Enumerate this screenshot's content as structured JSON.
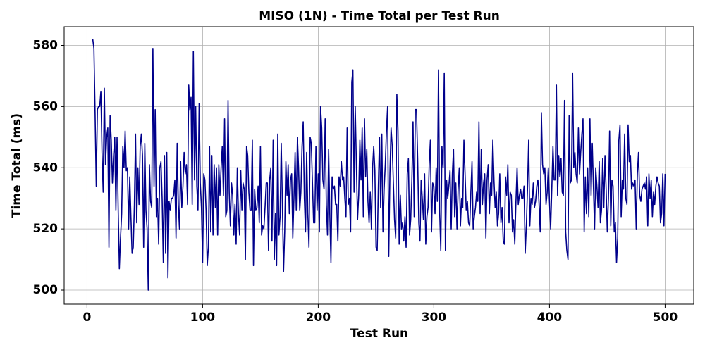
{
  "chart_data": {
    "type": "line",
    "title": "MISO (1N) - Time Total per Test Run",
    "x_label": "Test Run",
    "y_label": "Time Total (ms)",
    "color": "#00008b",
    "grid": true,
    "xlim": [
      -19.75,
      524.75
    ],
    "ylim": [
      495.4,
      586.1
    ],
    "xticks": [
      0,
      100,
      200,
      300,
      400,
      500
    ],
    "yticks": [
      500,
      520,
      540,
      560,
      580
    ],
    "x": [
      5,
      6,
      7,
      8,
      9,
      10,
      11,
      12,
      13,
      14,
      15,
      16,
      17,
      18,
      19,
      20,
      21,
      22,
      23,
      24,
      25,
      26,
      27,
      28,
      29,
      30,
      31,
      32,
      33,
      34,
      35,
      36,
      37,
      38,
      39,
      40,
      41,
      42,
      43,
      44,
      45,
      46,
      47,
      48,
      49,
      50,
      51,
      52,
      53,
      54,
      55,
      56,
      57,
      58,
      59,
      60,
      61,
      62,
      63,
      64,
      65,
      66,
      67,
      68,
      69,
      70,
      71,
      72,
      73,
      74,
      75,
      76,
      77,
      78,
      79,
      80,
      81,
      82,
      83,
      84,
      85,
      86,
      87,
      88,
      89,
      90,
      91,
      92,
      93,
      94,
      95,
      96,
      97,
      98,
      99,
      100,
      101,
      102,
      103,
      104,
      105,
      106,
      107,
      108,
      109,
      110,
      111,
      112,
      113,
      114,
      115,
      116,
      117,
      118,
      119,
      120,
      121,
      122,
      123,
      124,
      125,
      126,
      127,
      128,
      129,
      130,
      131,
      132,
      133,
      134,
      135,
      136,
      137,
      138,
      139,
      140,
      141,
      142,
      143,
      144,
      145,
      146,
      147,
      148,
      149,
      150,
      151,
      152,
      153,
      154,
      155,
      156,
      157,
      158,
      159,
      160,
      161,
      162,
      163,
      164,
      165,
      166,
      167,
      168,
      169,
      170,
      171,
      172,
      173,
      174,
      175,
      176,
      177,
      178,
      179,
      180,
      181,
      182,
      183,
      184,
      185,
      186,
      187,
      188,
      189,
      190,
      191,
      192,
      193,
      194,
      195,
      196,
      197,
      198,
      199,
      200,
      201,
      202,
      203,
      204,
      205,
      206,
      207,
      208,
      209,
      210,
      211,
      212,
      213,
      214,
      215,
      216,
      217,
      218,
      219,
      220,
      221,
      222,
      223,
      224,
      225,
      226,
      227,
      228,
      229,
      230,
      231,
      232,
      233,
      234,
      235,
      236,
      237,
      238,
      239,
      240,
      241,
      242,
      243,
      244,
      245,
      246,
      247,
      248,
      249,
      250,
      251,
      252,
      253,
      254,
      255,
      256,
      257,
      258,
      259,
      260,
      261,
      262,
      263,
      264,
      265,
      266,
      267,
      268,
      269,
      270,
      271,
      272,
      273,
      274,
      275,
      276,
      277,
      278,
      279,
      280,
      281,
      282,
      283,
      284,
      285,
      286,
      287,
      288,
      289,
      290,
      291,
      292,
      293,
      294,
      295,
      296,
      297,
      298,
      299,
      300,
      301,
      302,
      303,
      304,
      305,
      306,
      307,
      308,
      309,
      310,
      311,
      312,
      313,
      314,
      315,
      316,
      317,
      318,
      319,
      320,
      321,
      322,
      323,
      324,
      325,
      326,
      327,
      328,
      329,
      330,
      331,
      332,
      333,
      334,
      335,
      336,
      337,
      338,
      339,
      340,
      341,
      342,
      343,
      344,
      345,
      346,
      347,
      348,
      349,
      350,
      351,
      352,
      353,
      354,
      355,
      356,
      357,
      358,
      359,
      360,
      361,
      362,
      363,
      364,
      365,
      366,
      367,
      368,
      369,
      370,
      371,
      372,
      373,
      374,
      375,
      376,
      377,
      378,
      379,
      380,
      381,
      382,
      383,
      384,
      385,
      386,
      387,
      388,
      389,
      390,
      391,
      392,
      393,
      394,
      395,
      396,
      397,
      398,
      399,
      400,
      401,
      402,
      403,
      404,
      405,
      406,
      407,
      408,
      409,
      410,
      411,
      412,
      413,
      414,
      415,
      416,
      417,
      418,
      419,
      420,
      421,
      422,
      423,
      424,
      425,
      426,
      427,
      428,
      429,
      430,
      431,
      432,
      433,
      434,
      435,
      436,
      437,
      438,
      439,
      440,
      441,
      442,
      443,
      444,
      445,
      446,
      447,
      448,
      449,
      450,
      451,
      452,
      453,
      454,
      455,
      456,
      457,
      458,
      459,
      460,
      461,
      462,
      463,
      464,
      465,
      466,
      467,
      468,
      469,
      470,
      471,
      472,
      473,
      474,
      475,
      476,
      477,
      478,
      479,
      480,
      481,
      482,
      483,
      484,
      485,
      486,
      487,
      488,
      489,
      490,
      491,
      492,
      493,
      494,
      495,
      496,
      497,
      498,
      499,
      500
    ],
    "values": [
      582,
      579,
      558,
      534,
      559,
      560,
      560,
      565,
      545,
      532,
      566,
      541,
      550,
      553,
      514,
      557,
      549,
      535,
      544,
      550,
      526,
      550,
      526,
      507,
      517,
      525,
      547,
      540,
      552,
      539,
      540,
      520,
      537,
      524,
      512,
      514,
      528,
      551,
      522,
      540,
      528,
      547,
      551,
      544,
      514,
      548,
      526,
      520,
      500,
      541,
      529,
      527,
      579,
      534,
      559,
      524,
      530,
      515,
      540,
      542,
      530,
      509,
      544,
      512,
      545,
      504,
      529,
      526,
      530,
      530,
      531,
      536,
      517,
      548,
      528,
      520,
      542,
      527,
      534,
      545,
      538,
      541,
      528,
      567,
      559,
      563,
      528,
      578,
      536,
      560,
      534,
      526,
      561,
      535,
      527,
      509,
      538,
      536,
      526,
      508,
      514,
      547,
      519,
      544,
      518,
      541,
      527,
      540,
      518,
      541,
      531,
      540,
      547,
      531,
      556,
      524,
      526,
      562,
      532,
      521,
      535,
      531,
      518,
      528,
      515,
      540,
      525,
      518,
      539,
      526,
      535,
      533,
      510,
      547,
      544,
      532,
      526,
      526,
      549,
      508,
      533,
      526,
      527,
      534,
      522,
      547,
      518,
      521,
      520,
      527,
      535,
      535,
      513,
      536,
      540,
      516,
      549,
      510,
      525,
      508,
      551,
      518,
      524,
      548,
      528,
      506,
      519,
      542,
      531,
      541,
      525,
      536,
      538,
      517,
      530,
      545,
      526,
      550,
      540,
      526,
      532,
      547,
      555,
      530,
      519,
      545,
      525,
      514,
      550,
      548,
      535,
      522,
      522,
      547,
      526,
      538,
      519,
      560,
      553,
      536,
      533,
      556,
      528,
      518,
      546,
      525,
      509,
      537,
      533,
      534,
      528,
      528,
      516,
      537,
      534,
      542,
      536,
      537,
      530,
      524,
      553,
      528,
      530,
      519,
      568,
      572,
      532,
      560,
      541,
      523,
      531,
      549,
      536,
      553,
      524,
      556,
      537,
      546,
      529,
      522,
      532,
      520,
      540,
      547,
      539,
      514,
      513,
      534,
      550,
      527,
      551,
      519,
      533,
      541,
      552,
      560,
      511,
      538,
      553,
      547,
      535,
      523,
      517,
      564,
      552,
      515,
      531,
      520,
      522,
      516,
      524,
      514,
      538,
      543,
      518,
      523,
      536,
      555,
      524,
      559,
      559,
      543,
      522,
      516,
      536,
      530,
      523,
      538,
      515,
      524,
      527,
      541,
      549,
      519,
      535,
      534,
      525,
      540,
      529,
      572,
      526,
      513,
      547,
      540,
      571,
      513,
      536,
      530,
      534,
      539,
      520,
      538,
      546,
      524,
      535,
      520,
      533,
      540,
      521,
      530,
      527,
      549,
      538,
      526,
      529,
      522,
      521,
      532,
      542,
      520,
      524,
      527,
      532,
      529,
      555,
      525,
      546,
      528,
      535,
      538,
      517,
      536,
      541,
      525,
      535,
      531,
      549,
      536,
      527,
      532,
      521,
      525,
      538,
      522,
      527,
      516,
      515,
      537,
      531,
      541,
      522,
      532,
      531,
      519,
      523,
      515,
      529,
      540,
      528,
      531,
      533,
      530,
      530,
      534,
      512,
      521,
      533,
      549,
      521,
      530,
      528,
      535,
      527,
      529,
      534,
      536,
      528,
      519,
      558,
      541,
      538,
      540,
      528,
      532,
      540,
      529,
      520,
      533,
      547,
      536,
      536,
      567,
      531,
      544,
      537,
      543,
      532,
      531,
      562,
      519,
      513,
      510,
      557,
      535,
      536,
      571,
      540,
      545,
      538,
      535,
      553,
      538,
      545,
      551,
      556,
      519,
      537,
      525,
      540,
      524,
      556,
      531,
      548,
      534,
      520,
      540,
      534,
      527,
      542,
      522,
      526,
      543,
      527,
      544,
      533,
      519,
      530,
      552,
      521,
      536,
      534,
      519,
      522,
      509,
      517,
      549,
      554,
      524,
      536,
      533,
      551,
      530,
      528,
      554,
      542,
      544,
      533,
      535,
      534,
      536,
      520,
      538,
      545,
      531,
      529,
      533,
      534,
      535,
      533,
      537,
      521,
      538,
      530,
      536,
      524,
      532,
      528,
      534,
      537,
      535,
      534,
      522,
      525,
      538,
      521,
      538
    ]
  }
}
